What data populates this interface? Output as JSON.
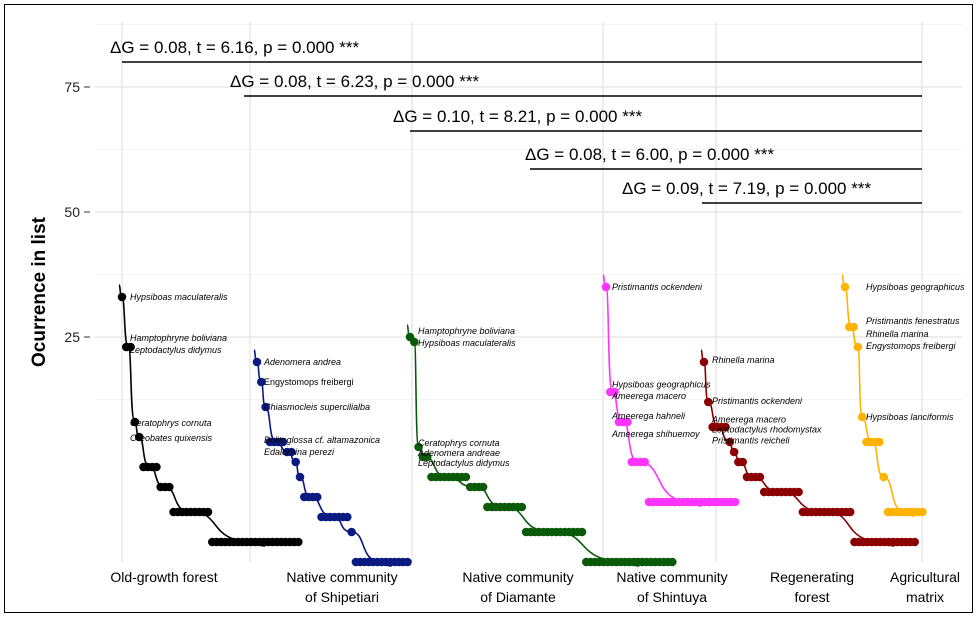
{
  "chart_data": {
    "type": "scatter",
    "ylabel": "Ocurrence in list",
    "y_ticks": [
      "25",
      "50",
      "75"
    ],
    "ylim": [
      -20,
      88
    ],
    "grid": true,
    "categories": [
      "Old-growth forest",
      "Native community of Shipetiari",
      "Native community of Diamante",
      "Native community of Shintuya",
      "Regenerating forest",
      "Agricultural matrix"
    ],
    "category_label_lines": [
      [
        "Old-growth forest"
      ],
      [
        "Native community",
        "of Shipetiari"
      ],
      [
        "Native community",
        "of Diamante"
      ],
      [
        "Native community",
        "of Shintuya"
      ],
      [
        "Regenerating",
        "forest"
      ],
      [
        "Agricultural",
        "matrix"
      ]
    ],
    "comparisons": [
      {
        "text": "ΔG = 0.08, t = 6.16, p = 0.000 ***",
        "from": "Old-growth forest",
        "to": "Agricultural matrix"
      },
      {
        "text": "ΔG = 0.08, t = 6.23, p = 0.000 ***",
        "from": "Native community of Shipetiari",
        "to": "Agricultural matrix"
      },
      {
        "text": "ΔG = 0.10, t = 8.21, p = 0.000 ***",
        "from": "Native community of Diamante",
        "to": "Agricultural matrix"
      },
      {
        "text": "ΔG = 0.08, t = 6.00, p = 0.000 ***",
        "from": "Native community of Shintuya",
        "to": "Agricultural matrix"
      },
      {
        "text": "ΔG = 0.09, t = 7.19, p = 0.000 ***",
        "from": "Regenerating forest",
        "to": "Agricultural matrix"
      }
    ],
    "series": [
      {
        "category": "Old-growth forest",
        "color": "#000000",
        "levels": [
          [
            33,
            1
          ],
          [
            23,
            2
          ],
          [
            8,
            1
          ],
          [
            5,
            1
          ],
          [
            -1,
            4
          ],
          [
            -5,
            3
          ],
          [
            -10,
            9
          ],
          [
            -16,
            21
          ]
        ],
        "labels": [
          {
            "text": "Hypsiboas maculateralis",
            "y": 33
          },
          {
            "text": "Hamptophryne boliviana",
            "y": 24.8
          },
          {
            "text": "Leptodactylus didymus",
            "y": 22.4
          },
          {
            "text": "Ceratophrys cornuta",
            "y": 7.8
          },
          {
            "text": "Oreobates quixensis",
            "y": 4.8
          }
        ]
      },
      {
        "category": "Native community of Shipetiari",
        "color": "#0a1a80",
        "levels": [
          [
            20,
            1
          ],
          [
            16,
            1
          ],
          [
            11,
            1
          ],
          [
            4,
            4
          ],
          [
            2,
            2
          ],
          [
            0,
            1
          ],
          [
            -3,
            1
          ],
          [
            -7,
            4
          ],
          [
            -11,
            7
          ],
          [
            -14,
            1
          ],
          [
            -20,
            13
          ]
        ],
        "labels": [
          {
            "text": "Adenomera andrea",
            "y": 20
          },
          {
            "text": "Engystomops freibergi",
            "y": 16,
            "upright": true
          },
          {
            "text": "Chiasmocleis supercilialba",
            "y": 11
          },
          {
            "text": "Bolitoglossa cf. altamazonica",
            "y": 4.4
          },
          {
            "text": "Edalorhina perezi",
            "y": 2
          }
        ]
      },
      {
        "category": "Native community of Diamante",
        "color": "#0a5a0a",
        "levels": [
          [
            25,
            1
          ],
          [
            24,
            1
          ],
          [
            3,
            1
          ],
          [
            1,
            2
          ],
          [
            -3,
            9
          ],
          [
            -5,
            4
          ],
          [
            -9,
            9
          ],
          [
            -14,
            14
          ],
          [
            -20,
            21
          ]
        ],
        "labels": [
          {
            "text": "Hamptophryne boliviana",
            "y": 26.2
          },
          {
            "text": "Hypsiboas maculateralis",
            "y": 23.8
          },
          {
            "text": "Ceratophrys cornuta",
            "y": 3.8
          },
          {
            "text": "Adenomera andreae",
            "y": 1.8
          },
          {
            "text": "Leptodactylus didymus",
            "y": -0.2
          }
        ]
      },
      {
        "category": "Native community of Shintuya",
        "color": "#ff33ff",
        "levels": [
          [
            35,
            1
          ],
          [
            14,
            2
          ],
          [
            8,
            3
          ],
          [
            0,
            4
          ],
          [
            -8,
            21
          ]
        ],
        "labels": [
          {
            "text": "Pristimantis  ockendeni",
            "y": 35
          },
          {
            "text": "Hypsiboas geographicus",
            "y": 15.5
          },
          {
            "text": "Ameeregа macero",
            "y": 13.2
          },
          {
            "text": "Ameeregа hahneli",
            "y": 9.2
          },
          {
            "text": "Ameeregа shihuemoy",
            "y": 5.6
          }
        ]
      },
      {
        "category": "Regenerating forest",
        "color": "#8b0000",
        "levels": [
          [
            20,
            1
          ],
          [
            12,
            1
          ],
          [
            7,
            4
          ],
          [
            4,
            1
          ],
          [
            2,
            1
          ],
          [
            0,
            2
          ],
          [
            -3,
            4
          ],
          [
            -6,
            9
          ],
          [
            -10,
            12
          ],
          [
            -16,
            15
          ]
        ],
        "labels": [
          {
            "text": "Rhinella marina",
            "y": 20.4
          },
          {
            "text": "Pristimantis ockendeni",
            "y": 12.2
          },
          {
            "text": "Ameeregа macero",
            "y": 8.5
          },
          {
            "text": "Leptodactylus rhodomystax",
            "y": 6.5
          },
          {
            "text": "Pristimantis reicheli",
            "y": 4.3
          }
        ]
      },
      {
        "category": "Agricultural matrix",
        "color": "#ffb300",
        "levels": [
          [
            35,
            1
          ],
          [
            27,
            2
          ],
          [
            23,
            1
          ],
          [
            9,
            1
          ],
          [
            4,
            4
          ],
          [
            -3,
            1
          ],
          [
            -10,
            9
          ]
        ],
        "labels": [
          {
            "text": "Hypsiboas geographicus",
            "y": 35
          },
          {
            "text": "Pristimantis fenestratus",
            "y": 28.2
          },
          {
            "text": "Rhinella marina",
            "y": 25.6
          },
          {
            "text": "Engystomops freibergi",
            "y": 23.2
          },
          {
            "text": "Hypsiboas lanciformis",
            "y": 9
          }
        ]
      }
    ]
  }
}
